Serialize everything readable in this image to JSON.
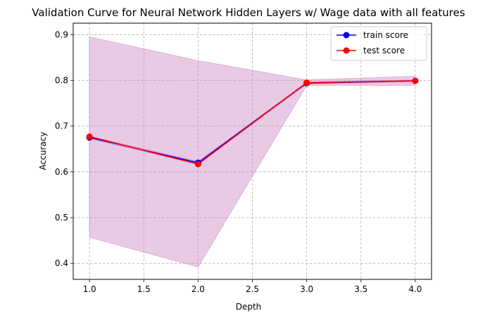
{
  "chart_data": {
    "type": "line",
    "title": "Validation Curve for Neural Network Hidden Layers w/ Wage data with all features",
    "xlabel": "Depth",
    "ylabel": "Accuracy",
    "xlim": [
      0.85,
      4.15
    ],
    "ylim": [
      0.365,
      0.925
    ],
    "xticks": [
      "1.0",
      "1.5",
      "2.0",
      "2.5",
      "3.0",
      "3.5",
      "4.0"
    ],
    "yticks": [
      "0.4",
      "0.5",
      "0.6",
      "0.7",
      "0.8",
      "0.9"
    ],
    "grid": true,
    "legend_position": "top-right",
    "x": [
      1,
      2,
      3,
      4
    ],
    "series": [
      {
        "name": "train score",
        "color": "#0000ff",
        "values": [
          0.675,
          0.62,
          0.794,
          0.799
        ],
        "band_lower": [
          0.672,
          0.617,
          0.792,
          0.797
        ],
        "band_upper": [
          0.678,
          0.623,
          0.796,
          0.801
        ]
      },
      {
        "name": "test score",
        "color": "#ff0000",
        "values": [
          0.677,
          0.617,
          0.795,
          0.799
        ],
        "band_lower": [
          0.457,
          0.392,
          0.789,
          0.789
        ],
        "band_upper": [
          0.895,
          0.843,
          0.801,
          0.809
        ]
      }
    ],
    "band_color": "#c97bbf"
  }
}
